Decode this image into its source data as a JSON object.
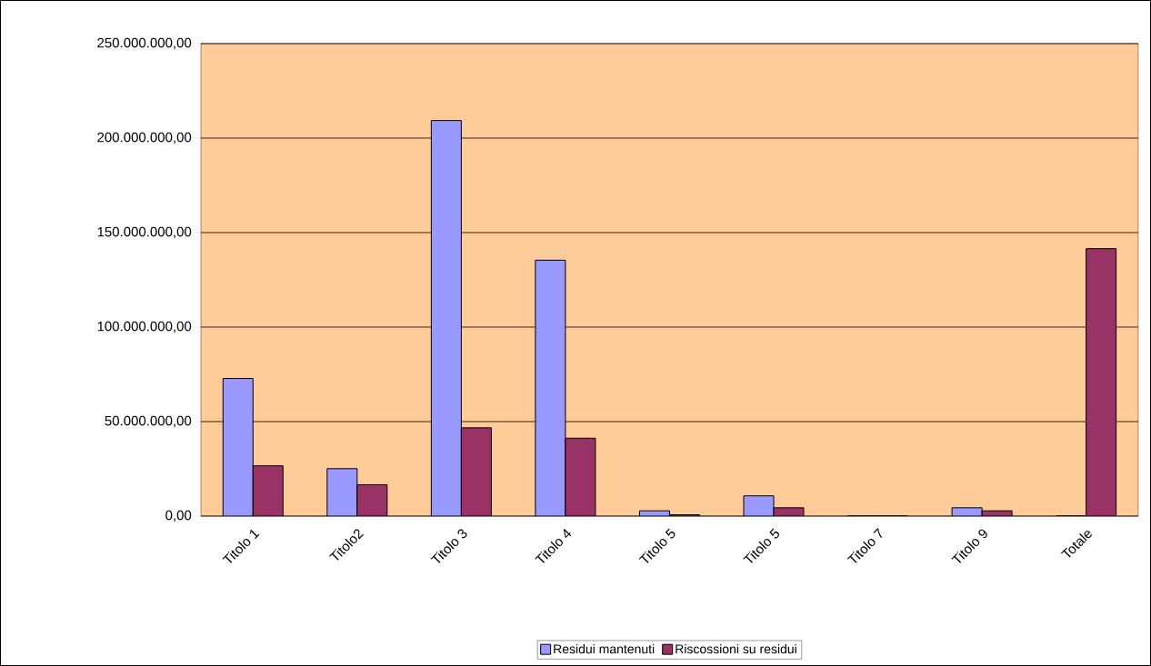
{
  "chart_data": {
    "type": "bar",
    "categories": [
      "Titolo 1",
      "Titolo2",
      "Titolo 3",
      "Titolo 4",
      "Titolo 5",
      "Titolo 5",
      "Titolo 7",
      "Titolo 9",
      "Totale"
    ],
    "series": [
      {
        "name": "Residui mantenuti",
        "color": "#9999ff",
        "values": [
          72800000,
          25100000,
          209300000,
          135400000,
          2800000,
          10700000,
          0,
          4400000,
          0
        ]
      },
      {
        "name": "Riscossioni su residui",
        "color": "#993366",
        "values": [
          26600000,
          16600000,
          46700000,
          41200000,
          700000,
          4400000,
          0,
          2800000,
          141500000
        ]
      }
    ],
    "ylim": [
      0,
      250000000
    ],
    "yticks": [
      {
        "value": 0,
        "label": "0,00"
      },
      {
        "value": 50000000,
        "label": "50.000.000,00"
      },
      {
        "value": 100000000,
        "label": "100.000.000,00"
      },
      {
        "value": 150000000,
        "label": "150.000.000,00"
      },
      {
        "value": 200000000,
        "label": "200.000.000,00"
      },
      {
        "value": 250000000,
        "label": "250.000.000,00"
      }
    ],
    "grid": "y",
    "legend": "bottom"
  }
}
